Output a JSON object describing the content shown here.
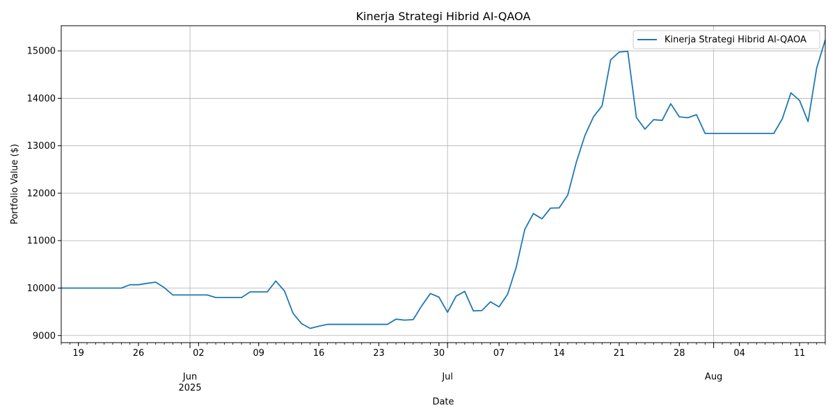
{
  "chart_data": {
    "type": "line",
    "title": "Kinerja Strategi Hibrid AI-QAOA",
    "xlabel": "Date",
    "ylabel": "Portfolio Value ($)",
    "ylim": [
      8850,
      15530
    ],
    "xlim": [
      "2025-05-17",
      "2025-08-14"
    ],
    "yticks": [
      9000,
      10000,
      11000,
      12000,
      13000,
      14000,
      15000
    ],
    "xticks_minor_day_labels": [
      {
        "date": "2025-05-19",
        "label": "19"
      },
      {
        "date": "2025-05-26",
        "label": "26"
      },
      {
        "date": "2025-06-02",
        "label": "02"
      },
      {
        "date": "2025-06-09",
        "label": "09"
      },
      {
        "date": "2025-06-16",
        "label": "16"
      },
      {
        "date": "2025-06-23",
        "label": "23"
      },
      {
        "date": "2025-06-30",
        "label": "30"
      },
      {
        "date": "2025-07-07",
        "label": "07"
      },
      {
        "date": "2025-07-14",
        "label": "14"
      },
      {
        "date": "2025-07-21",
        "label": "21"
      },
      {
        "date": "2025-07-28",
        "label": "28"
      },
      {
        "date": "2025-08-04",
        "label": "04"
      },
      {
        "date": "2025-08-11",
        "label": "11"
      }
    ],
    "xticks_major": [
      {
        "date": "2025-06-01",
        "label": "Jun",
        "sublabel": "2025"
      },
      {
        "date": "2025-07-01",
        "label": "Jul",
        "sublabel": ""
      },
      {
        "date": "2025-08-01",
        "label": "Aug",
        "sublabel": ""
      }
    ],
    "grid": true,
    "legend": "top-right",
    "line_color": "#1f77b4",
    "series": [
      {
        "name": "Kinerja Strategi Hibrid AI-QAOA",
        "x": [
          "2025-05-17",
          "2025-05-18",
          "2025-05-19",
          "2025-05-20",
          "2025-05-21",
          "2025-05-22",
          "2025-05-23",
          "2025-05-24",
          "2025-05-25",
          "2025-05-26",
          "2025-05-27",
          "2025-05-28",
          "2025-05-29",
          "2025-05-30",
          "2025-05-31",
          "2025-06-01",
          "2025-06-02",
          "2025-06-03",
          "2025-06-04",
          "2025-06-05",
          "2025-06-06",
          "2025-06-07",
          "2025-06-08",
          "2025-06-09",
          "2025-06-10",
          "2025-06-11",
          "2025-06-12",
          "2025-06-13",
          "2025-06-14",
          "2025-06-15",
          "2025-06-16",
          "2025-06-17",
          "2025-06-18",
          "2025-06-19",
          "2025-06-20",
          "2025-06-21",
          "2025-06-22",
          "2025-06-23",
          "2025-06-24",
          "2025-06-25",
          "2025-06-26",
          "2025-06-27",
          "2025-06-28",
          "2025-06-29",
          "2025-06-30",
          "2025-07-01",
          "2025-07-02",
          "2025-07-03",
          "2025-07-04",
          "2025-07-05",
          "2025-07-06",
          "2025-07-07",
          "2025-07-08",
          "2025-07-09",
          "2025-07-10",
          "2025-07-11",
          "2025-07-12",
          "2025-07-13",
          "2025-07-14",
          "2025-07-15",
          "2025-07-16",
          "2025-07-17",
          "2025-07-18",
          "2025-07-19",
          "2025-07-20",
          "2025-07-21",
          "2025-07-22",
          "2025-07-23",
          "2025-07-24",
          "2025-07-25",
          "2025-07-26",
          "2025-07-27",
          "2025-07-28",
          "2025-07-29",
          "2025-07-30",
          "2025-07-31",
          "2025-08-01",
          "2025-08-02",
          "2025-08-03",
          "2025-08-04",
          "2025-08-05",
          "2025-08-06",
          "2025-08-07",
          "2025-08-08",
          "2025-08-09",
          "2025-08-10",
          "2025-08-11",
          "2025-08-12",
          "2025-08-13",
          "2025-08-14"
        ],
        "values": [
          10000,
          10000,
          10000,
          10000,
          10000,
          10000,
          10000,
          10000,
          10070,
          10070,
          10100,
          10125,
          10010,
          9855,
          9855,
          9855,
          9855,
          9855,
          9800,
          9800,
          9800,
          9800,
          9920,
          9920,
          9920,
          10150,
          9940,
          9470,
          9250,
          9150,
          9195,
          9235,
          9235,
          9235,
          9235,
          9235,
          9235,
          9235,
          9235,
          9345,
          9325,
          9335,
          9630,
          9885,
          9810,
          9490,
          9830,
          9930,
          9520,
          9525,
          9710,
          9605,
          9870,
          10440,
          11240,
          11570,
          11460,
          11685,
          11690,
          11960,
          12650,
          13215,
          13610,
          13840,
          14810,
          14975,
          14990,
          13595,
          13350,
          13550,
          13535,
          13885,
          13610,
          13590,
          13655,
          13260,
          13260,
          13260,
          13260,
          13260,
          13260,
          13260,
          13260,
          13260,
          13570,
          14115,
          13955,
          13510,
          14640,
          15230
        ]
      }
    ]
  }
}
